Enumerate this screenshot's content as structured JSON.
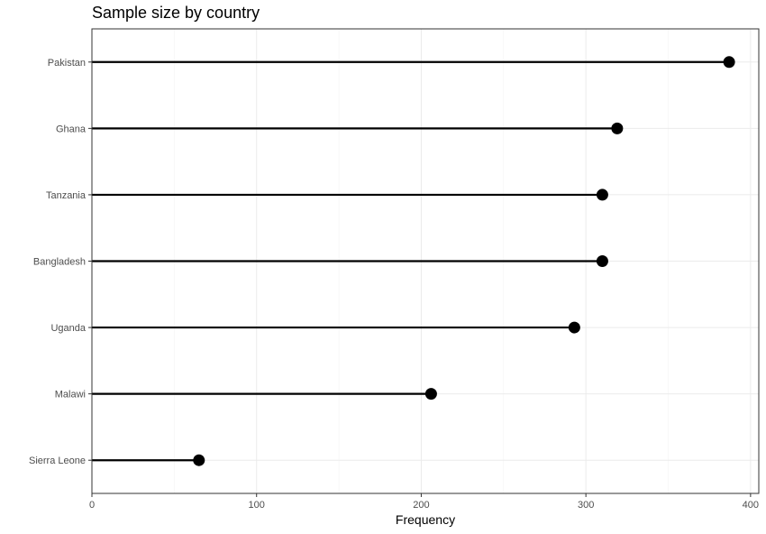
{
  "chart_data": {
    "type": "lollipop",
    "title": "Sample size by country",
    "xlabel": "Frequency",
    "ylabel": "",
    "xlim": [
      0,
      405
    ],
    "x_ticks": [
      0,
      100,
      200,
      300,
      400
    ],
    "x_tick_labels": [
      "0",
      "100",
      "200",
      "300",
      "400"
    ],
    "grid": true,
    "categories": [
      "Pakistan",
      "Ghana",
      "Tanzania",
      "Bangladesh",
      "Uganda",
      "Malawi",
      "Sierra Leone"
    ],
    "values": [
      387,
      319,
      310,
      310,
      293,
      206,
      65
    ],
    "point_color": "#000000",
    "stem_color": "#000000"
  }
}
